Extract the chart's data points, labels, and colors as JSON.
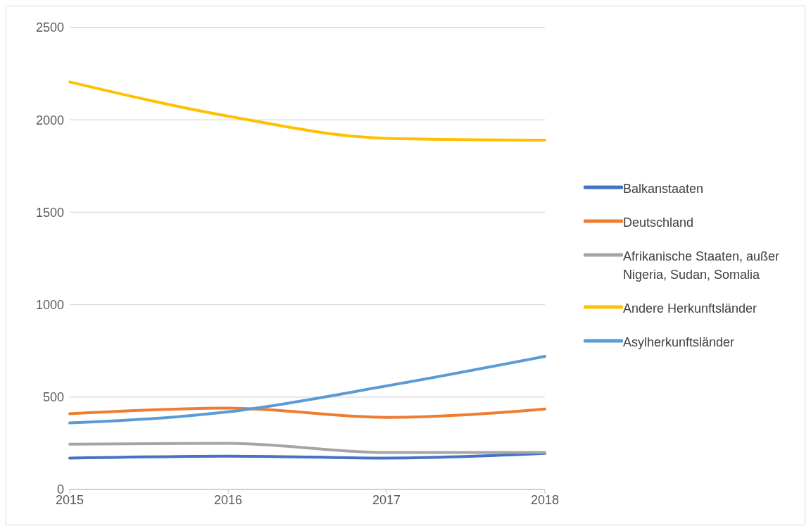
{
  "chart_data": {
    "type": "line",
    "categories": [
      "2015",
      "2016",
      "2017",
      "2018"
    ],
    "series": [
      {
        "name": "Balkanstaaten",
        "color": "#4472c4",
        "values": [
          170,
          180,
          170,
          195
        ]
      },
      {
        "name": "Deutschland",
        "color": "#ed7d31",
        "values": [
          410,
          440,
          390,
          435
        ]
      },
      {
        "name": "Afrikanische Staaten, außer Nigeria, Sudan, Somalia",
        "color": "#a5a5a5",
        "values": [
          245,
          250,
          200,
          200
        ]
      },
      {
        "name": "Andere Herkunftsländer",
        "color": "#ffc000",
        "values": [
          2205,
          2020,
          1900,
          1890
        ]
      },
      {
        "name": "Asylherkunftsländer",
        "color": "#5b9bd5",
        "values": [
          360,
          420,
          560,
          720
        ]
      }
    ],
    "ylim": [
      0,
      2500
    ],
    "yticks": [
      0,
      500,
      1000,
      1500,
      2000,
      2500
    ],
    "grid": "y",
    "legend": "right",
    "marker": "none",
    "line_style": "solid"
  }
}
